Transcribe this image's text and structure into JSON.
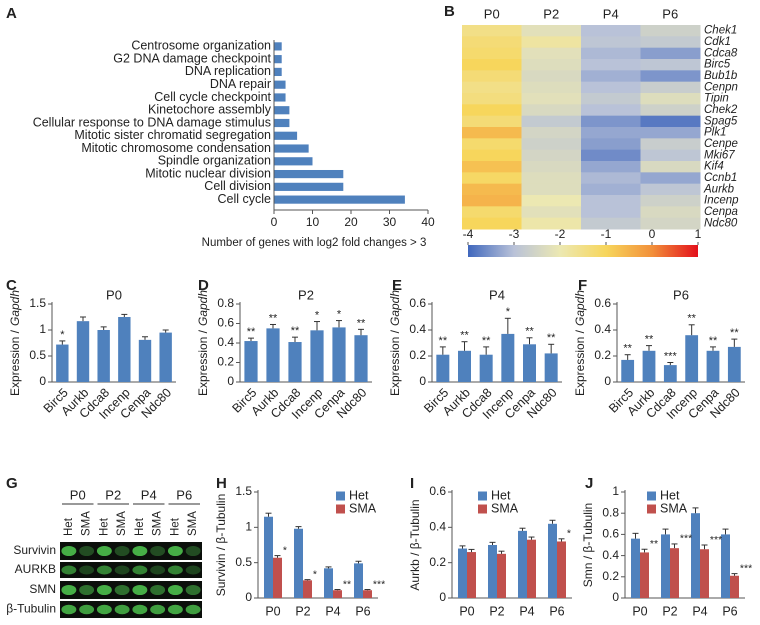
{
  "chart_data": [
    {
      "type": "barh",
      "panel": "A",
      "color": "#4f81bd",
      "categories": [
        "Centrosome organization",
        "G2 DNA damage checkpoint",
        "DNA replication",
        "DNA repair",
        "Cell cycle checkpoint",
        "Kinetochore assembly",
        "Cellular response to DNA damage stimulus",
        "Mitotic sister chromatid segregation",
        "Mitotic chromosome condensation",
        "Spindle organization",
        "Mitotic nuclear division",
        "Cell division",
        "Cell cycle"
      ],
      "values": [
        2,
        2,
        2,
        3,
        3,
        4,
        4,
        6,
        9,
        10,
        18,
        18,
        34
      ],
      "xlim": [
        0,
        40
      ],
      "xticks": [
        0,
        10,
        20,
        30,
        40
      ],
      "xlabel": "Number of genes with log2 fold changes > 3"
    },
    {
      "type": "heatmap",
      "panel": "B",
      "columns": [
        "P0",
        "P2",
        "P4",
        "P6"
      ],
      "rows": [
        "Chek1",
        "Cdk1",
        "Cdca8",
        "Birc5",
        "Bub1b",
        "Cenpn",
        "Tipin",
        "Chek2",
        "Spag5",
        "Plk1",
        "Cenpe",
        "Mki67",
        "Kif4",
        "Ccnb1",
        "Aurkb",
        "Incenp",
        "Cenpa",
        "Ndc80"
      ],
      "values": [
        [
          -1.5,
          -2.2,
          -3.0,
          -2.6
        ],
        [
          -1.3,
          -1.8,
          -2.9,
          -2.8
        ],
        [
          -1.2,
          -2.2,
          -3.1,
          -3.4
        ],
        [
          -1.0,
          -2.3,
          -3.0,
          -2.9
        ],
        [
          -1.3,
          -2.4,
          -3.2,
          -3.5
        ],
        [
          -1.5,
          -2.3,
          -3.0,
          -2.7
        ],
        [
          -1.4,
          -2.2,
          -2.8,
          -2.3
        ],
        [
          -1.0,
          -2.4,
          -3.0,
          -2.6
        ],
        [
          -1.3,
          -2.8,
          -3.5,
          -3.8
        ],
        [
          -0.6,
          -2.5,
          -3.3,
          -3.3
        ],
        [
          -1.2,
          -2.6,
          -3.4,
          -2.7
        ],
        [
          -1.0,
          -2.5,
          -3.6,
          -2.9
        ],
        [
          -0.7,
          -2.4,
          -3.3,
          -2.4
        ],
        [
          -1.1,
          -2.3,
          -3.1,
          -3.3
        ],
        [
          -0.6,
          -2.3,
          -3.2,
          -2.9
        ],
        [
          -0.5,
          -2.0,
          -3.0,
          -2.6
        ],
        [
          -1.2,
          -2.2,
          -3.0,
          -2.4
        ],
        [
          -1.0,
          -1.9,
          -2.8,
          -2.5
        ]
      ],
      "clim": [
        -4,
        1
      ],
      "cticks": [
        -4,
        -3,
        -2,
        -1,
        0,
        1
      ],
      "colorscale": [
        [
          -4,
          "#4067bd"
        ],
        [
          -3,
          "#b9c2d8"
        ],
        [
          -2,
          "#ece8b2"
        ],
        [
          -1,
          "#f7d65c"
        ],
        [
          0,
          "#f2903a"
        ],
        [
          1,
          "#e3101b"
        ]
      ]
    },
    {
      "type": "bar",
      "panel": "C",
      "title": "P0",
      "color": "#4f81bd",
      "ylabel": "Expression /",
      "ylabel_italic": "Gapdh",
      "categories": [
        "Birc5",
        "Aurkb",
        "Cdca8",
        "Incenp",
        "Cenpa",
        "Ndc80"
      ],
      "values": [
        0.72,
        1.17,
        1.0,
        1.25,
        0.81,
        0.95
      ],
      "errors": [
        0.07,
        0.08,
        0.06,
        0.05,
        0.06,
        0.05
      ],
      "labels": [
        "*",
        null,
        null,
        null,
        null,
        null
      ],
      "ylim": [
        0,
        1.5
      ],
      "yticks": [
        0,
        0.5,
        1,
        1.5
      ]
    },
    {
      "type": "bar",
      "panel": "D",
      "title": "P2",
      "color": "#4f81bd",
      "ylabel": "Expression /",
      "ylabel_italic": "Gapdh",
      "categories": [
        "Birc5",
        "Aurkb",
        "Cdca8",
        "Incenp",
        "Cenpa",
        "Ndc80"
      ],
      "values": [
        0.42,
        0.55,
        0.41,
        0.53,
        0.56,
        0.48
      ],
      "errors": [
        0.03,
        0.04,
        0.05,
        0.09,
        0.07,
        0.06
      ],
      "labels": [
        "**",
        "**",
        "**",
        "*",
        "*",
        "**"
      ],
      "ylim": [
        0,
        0.8
      ],
      "yticks": [
        0,
        0.2,
        0.4,
        0.6,
        0.8
      ]
    },
    {
      "type": "bar",
      "panel": "E",
      "title": "P4",
      "color": "#4f81bd",
      "ylabel": "Expression /",
      "ylabel_italic": "Gapdh",
      "categories": [
        "Birc5",
        "Aurkb",
        "Cdca8",
        "Incenp",
        "Cenpa",
        "Ndc80"
      ],
      "values": [
        0.21,
        0.24,
        0.21,
        0.37,
        0.29,
        0.22
      ],
      "errors": [
        0.06,
        0.07,
        0.06,
        0.12,
        0.05,
        0.07
      ],
      "labels": [
        "**",
        "**",
        "**",
        "*",
        "**",
        "**"
      ],
      "ylim": [
        0,
        0.6
      ],
      "yticks": [
        0,
        0.2,
        0.4,
        0.6
      ]
    },
    {
      "type": "bar",
      "panel": "F",
      "title": "P6",
      "color": "#4f81bd",
      "ylabel": "Expression /",
      "ylabel_italic": "Gapdh",
      "categories": [
        "Birc5",
        "Aurkb",
        "Cdca8",
        "Incenp",
        "Cenpa",
        "Ndc80"
      ],
      "values": [
        0.17,
        0.24,
        0.13,
        0.36,
        0.24,
        0.27
      ],
      "errors": [
        0.04,
        0.04,
        0.02,
        0.08,
        0.03,
        0.06
      ],
      "labels": [
        "**",
        "**",
        "***",
        "**",
        "**",
        "**"
      ],
      "ylim": [
        0,
        0.6
      ],
      "yticks": [
        0,
        0.2,
        0.4,
        0.6
      ]
    },
    {
      "type": "grouped_bar",
      "panel": "H",
      "ylabel": "Survivin / β-Tubulin",
      "categories": [
        "P0",
        "P2",
        "P4",
        "P6"
      ],
      "series": [
        {
          "name": "Het",
          "color": "#4f81bd",
          "values": [
            1.15,
            0.98,
            0.42,
            0.49
          ],
          "errors": [
            0.05,
            0.03,
            0.02,
            0.03
          ]
        },
        {
          "name": "SMA",
          "color": "#c0504d",
          "values": [
            0.57,
            0.25,
            0.11,
            0.11
          ],
          "errors": [
            0.03,
            0.01,
            0.01,
            0.01
          ],
          "labels": [
            "*",
            "*",
            "**",
            "***"
          ]
        }
      ],
      "ylim": [
        0,
        1.5
      ],
      "yticks": [
        0,
        0.5,
        1,
        1.5
      ]
    },
    {
      "type": "grouped_bar",
      "panel": "I",
      "ylabel": "Aurkb / β-Tubulin",
      "categories": [
        "P0",
        "P2",
        "P4",
        "P6"
      ],
      "series": [
        {
          "name": "Het",
          "color": "#4f81bd",
          "values": [
            0.28,
            0.3,
            0.38,
            0.42
          ],
          "errors": [
            0.015,
            0.015,
            0.015,
            0.02
          ]
        },
        {
          "name": "SMA",
          "color": "#c0504d",
          "values": [
            0.26,
            0.25,
            0.33,
            0.32
          ],
          "errors": [
            0.015,
            0.015,
            0.015,
            0.015
          ],
          "labels": [
            null,
            null,
            null,
            "*"
          ]
        }
      ],
      "ylim": [
        0,
        0.6
      ],
      "yticks": [
        0,
        0.2,
        0.4,
        0.6
      ]
    },
    {
      "type": "grouped_bar",
      "panel": "J",
      "ylabel": "Smn / β-Tubulin",
      "categories": [
        "P0",
        "P2",
        "P4",
        "P6"
      ],
      "series": [
        {
          "name": "Het",
          "color": "#4f81bd",
          "values": [
            0.56,
            0.6,
            0.8,
            0.6
          ],
          "errors": [
            0.05,
            0.05,
            0.05,
            0.05
          ]
        },
        {
          "name": "SMA",
          "color": "#c0504d",
          "values": [
            0.43,
            0.47,
            0.46,
            0.21
          ],
          "errors": [
            0.03,
            0.04,
            0.04,
            0.02
          ],
          "labels": [
            "**",
            "***",
            "***",
            "***"
          ]
        }
      ],
      "ylim": [
        0,
        1
      ],
      "yticks": [
        0,
        0.2,
        0.4,
        0.6,
        0.8,
        1
      ]
    }
  ],
  "blot": {
    "panel": "G",
    "groups": [
      "P0",
      "P2",
      "P4",
      "P6"
    ],
    "lanes": [
      "Het",
      "SMA",
      "Het",
      "SMA",
      "Het",
      "SMA",
      "Het",
      "SMA"
    ],
    "rows": [
      "Survivin",
      "AURKB",
      "SMN",
      "β-Tubulin"
    ]
  }
}
